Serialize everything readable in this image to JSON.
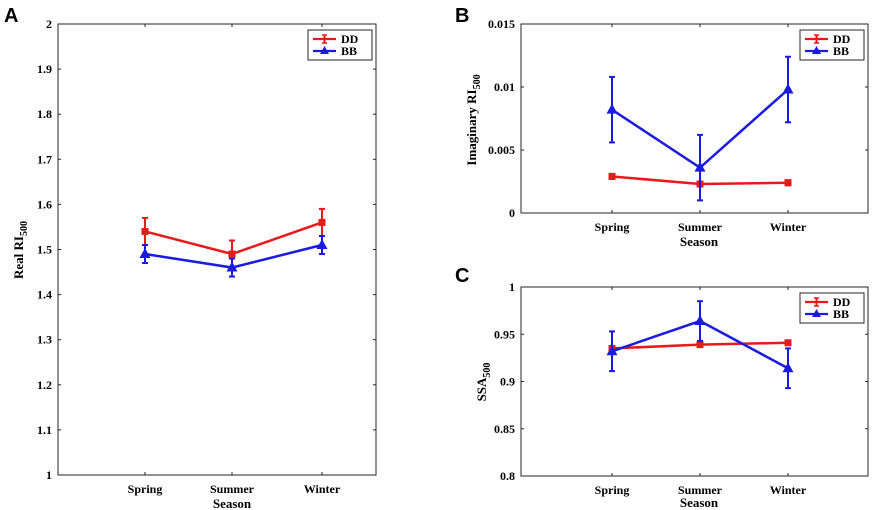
{
  "colors": {
    "DD": "#e8191b",
    "BB": "#1b1be0"
  },
  "chart_data": [
    {
      "panel": "A",
      "type": "line",
      "xlabel": "Season",
      "ylabel": "Real RI",
      "ylabel_sub": "500",
      "categories": [
        "Spring",
        "Summer",
        "Winter"
      ],
      "ylim": [
        1,
        2
      ],
      "yticks": [
        1,
        1.1,
        1.2,
        1.3,
        1.4,
        1.5,
        1.6,
        1.7,
        1.8,
        1.9,
        2
      ],
      "ytick_labels": [
        "1",
        "1.1",
        "1.2",
        "1.3",
        "1.4",
        "1.5",
        "1.6",
        "1.7",
        "1.8",
        "1.9",
        "2"
      ],
      "legend": "top-right",
      "series": [
        {
          "name": "DD",
          "marker": "square",
          "values": [
            1.54,
            1.49,
            1.56
          ],
          "err": [
            0.03,
            0.03,
            0.03
          ]
        },
        {
          "name": "BB",
          "marker": "triangle",
          "values": [
            1.49,
            1.46,
            1.51
          ],
          "err": [
            0.02,
            0.02,
            0.02
          ]
        }
      ]
    },
    {
      "panel": "B",
      "type": "line",
      "xlabel": "Season",
      "ylabel": "Imaginary RI",
      "ylabel_sub": "500",
      "categories": [
        "Spring",
        "Summer",
        "Winter"
      ],
      "ylim": [
        0,
        0.015
      ],
      "yticks": [
        0,
        0.005,
        0.01,
        0.015
      ],
      "ytick_labels": [
        "0",
        "0.005",
        "0.01",
        "0.015"
      ],
      "legend": "top-right",
      "series": [
        {
          "name": "DD",
          "marker": "square",
          "values": [
            0.0029,
            0.0023,
            0.0024
          ],
          "err": [
            0.0002,
            0.0002,
            0.0002
          ]
        },
        {
          "name": "BB",
          "marker": "triangle",
          "values": [
            0.0082,
            0.0036,
            0.0098
          ],
          "err": [
            0.0026,
            0.0026,
            0.0026
          ]
        }
      ]
    },
    {
      "panel": "C",
      "type": "line",
      "xlabel": "Season",
      "ylabel": "SSA",
      "ylabel_sub": "500",
      "categories": [
        "Spring",
        "Summer",
        "Winter"
      ],
      "ylim": [
        0.8,
        1
      ],
      "yticks": [
        0.8,
        0.85,
        0.9,
        0.95,
        1
      ],
      "ytick_labels": [
        "0.8",
        "0.85",
        "0.9",
        "0.95",
        "1"
      ],
      "legend": "top-right",
      "series": [
        {
          "name": "DD",
          "marker": "square",
          "values": [
            0.935,
            0.939,
            0.941
          ],
          "err": [
            0.002,
            0.002,
            0.002
          ]
        },
        {
          "name": "BB",
          "marker": "triangle",
          "values": [
            0.932,
            0.964,
            0.914
          ],
          "err": [
            0.021,
            0.021,
            0.021
          ]
        }
      ]
    }
  ]
}
